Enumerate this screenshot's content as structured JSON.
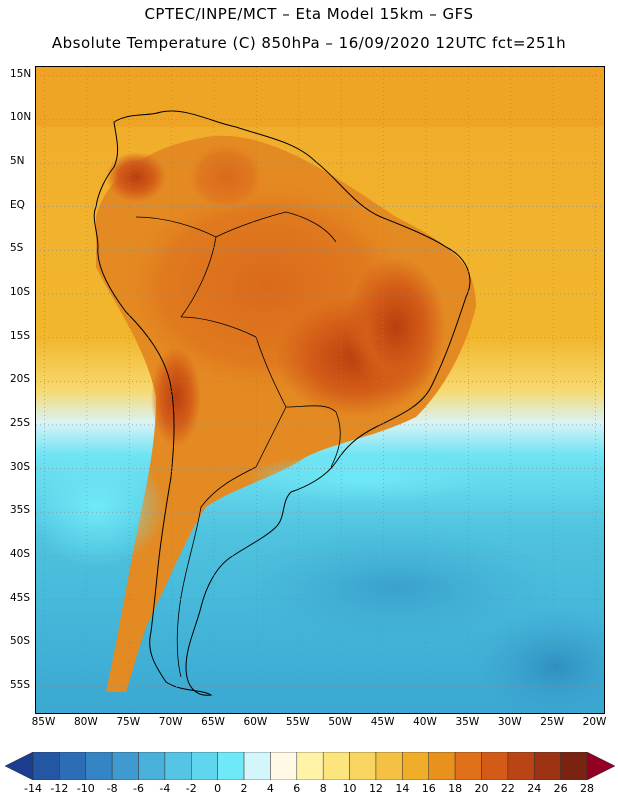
{
  "header": {
    "line1": "CPTEC/INPE/MCT –  Eta Model 15km – GFS",
    "line2": "Absolute Temperature (C) 850hPa – 16/09/2020 12UTC fct=251h"
  },
  "map": {
    "lat_labels": [
      "15N",
      "10N",
      "5N",
      "EQ",
      "5S",
      "10S",
      "15S",
      "20S",
      "25S",
      "30S",
      "35S",
      "40S",
      "45S",
      "50S",
      "55S"
    ],
    "lon_labels": [
      "85W",
      "80W",
      "75W",
      "70W",
      "65W",
      "60W",
      "55W",
      "50W",
      "45W",
      "40W",
      "35W",
      "30W",
      "25W",
      "20W"
    ],
    "lat_range": [
      16,
      -58
    ],
    "lon_range": [
      -86,
      -19
    ],
    "projection": "cylindrical",
    "grid": "dotted",
    "field": "temperature shaded contours",
    "colors": {
      "ocean_north": "#f0b020",
      "ocean_south": "#4fc3df",
      "warm_land": "#d9661b",
      "hot_core": "#b8400f",
      "cold_deep": "#2f8fc0"
    }
  },
  "colorbar": {
    "levels": [
      "-14",
      "-12",
      "-10",
      "-8",
      "-6",
      "-4",
      "-2",
      "0",
      "2",
      "4",
      "6",
      "8",
      "10",
      "12",
      "14",
      "16",
      "18",
      "20",
      "22",
      "24",
      "26",
      "28"
    ],
    "colors": [
      "#1a3d8f",
      "#2356a3",
      "#2c6db5",
      "#3584c3",
      "#3f9bcf",
      "#49b0db",
      "#55c4e5",
      "#60d6ee",
      "#6fe9f7",
      "#d2f6f9",
      "#fff9e6",
      "#fff3a8",
      "#fde57d",
      "#f8d460",
      "#f4c144",
      "#f0ad2a",
      "#e8921d",
      "#e0701a",
      "#d45a18",
      "#b94514",
      "#9c3312",
      "#7a2310",
      "#930026"
    ]
  }
}
